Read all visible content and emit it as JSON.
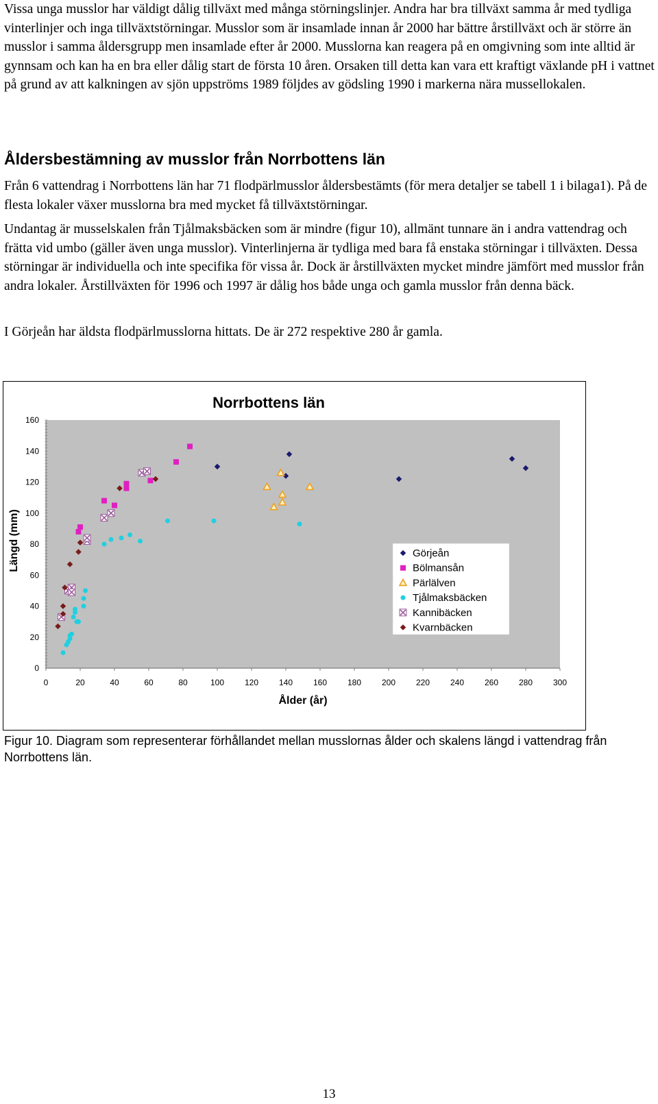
{
  "paragraphs": {
    "p1": "Vissa unga musslor har väldigt dålig tillväxt med många störningslinjer. Andra har bra tillväxt samma år med tydliga vinterlinjer och inga tillväxtstörningar. Musslor som är insamlade innan år 2000 har bättre årstillväxt och är större än musslor i samma åldersgrupp men insamlade efter år 2000. Musslorna kan reagera på en omgivning som inte alltid är gynnsam och kan ha en bra eller dålig start de första 10 åren. Orsaken till detta kan vara ett kraftigt växlande pH i vattnet på grund av att kalkningen av sjön uppströms 1989 följdes av gödsling 1990 i markerna nära mussellokalen.",
    "heading": "Åldersbestämning av musslor från Norrbottens län",
    "p2": "Från 6 vattendrag i Norrbottens län har 71 flodpärlmusslor åldersbestämts (för mera detaljer se tabell 1 i bilaga1). På de flesta lokaler växer musslorna bra med mycket få tillväxtstörningar.",
    "p3": "Undantag är musselskalen från Tjålmaksbäcken som är mindre (figur 10), allmänt tunnare än i andra vattendrag och frätta vid umbo (gäller även unga musslor). Vinterlinjerna är tydliga med bara få enstaka störningar i tillväxten. Dessa störningar är individuella och inte specifika för vissa år. Dock är årstillväxten mycket mindre jämfört med musslor från andra lokaler. Årstillväxten för 1996 och 1997 är dålig hos både unga och gamla musslor från denna bäck.",
    "p4": "I Görjeån har äldsta flodpärlmusslorna hittats. De är 272 respektive 280 år gamla."
  },
  "caption": "Figur 10. Diagram som representerar förhållandet mellan musslornas ålder och skalens längd i vattendrag från Norrbottens län.",
  "page_number": "13",
  "chart_data": {
    "type": "scatter",
    "title": "Norrbottens län",
    "xlabel": "Ålder (år)",
    "ylabel": "Längd (mm)",
    "xlim": [
      0,
      300
    ],
    "ylim": [
      0,
      160
    ],
    "x_ticks": [
      0,
      20,
      40,
      60,
      80,
      100,
      120,
      140,
      160,
      180,
      200,
      220,
      240,
      260,
      280,
      300
    ],
    "y_ticks": [
      0,
      20,
      40,
      60,
      80,
      100,
      120,
      140,
      160
    ],
    "plot_background": "#c0c0c0",
    "grid": false,
    "legend_position": "right",
    "series": [
      {
        "name": "Görjeån",
        "marker": "diamond",
        "color": "#1a1a6e",
        "points": [
          [
            100,
            130
          ],
          [
            142,
            138
          ],
          [
            140,
            124
          ],
          [
            206,
            122
          ],
          [
            272,
            135
          ],
          [
            280,
            129
          ]
        ]
      },
      {
        "name": "Bölmansån",
        "marker": "square",
        "color": "#e020c0",
        "points": [
          [
            19,
            88
          ],
          [
            20,
            91
          ],
          [
            34,
            108
          ],
          [
            40,
            105
          ],
          [
            47,
            119
          ],
          [
            47,
            116
          ],
          [
            61,
            121
          ],
          [
            76,
            133
          ],
          [
            84,
            143
          ]
        ]
      },
      {
        "name": "Pärlälven",
        "marker": "triangle",
        "color": "#f0a020",
        "points": [
          [
            129,
            117
          ],
          [
            133,
            104
          ],
          [
            137,
            126
          ],
          [
            138,
            112
          ],
          [
            138,
            107
          ],
          [
            154,
            117
          ]
        ]
      },
      {
        "name": "Tjålmaksbäcken",
        "marker": "circle",
        "color": "#20d0e0",
        "points": [
          [
            10,
            10
          ],
          [
            12,
            15
          ],
          [
            13,
            17
          ],
          [
            14,
            19
          ],
          [
            14,
            21
          ],
          [
            15,
            22
          ],
          [
            16,
            33
          ],
          [
            17,
            36
          ],
          [
            17,
            38
          ],
          [
            18,
            30
          ],
          [
            19,
            30
          ],
          [
            22,
            40
          ],
          [
            22,
            45
          ],
          [
            23,
            50
          ],
          [
            34,
            80
          ],
          [
            38,
            83
          ],
          [
            44,
            84
          ],
          [
            49,
            86
          ],
          [
            55,
            82
          ],
          [
            71,
            95
          ],
          [
            98,
            95
          ],
          [
            148,
            93
          ]
        ]
      },
      {
        "name": "Kannibäcken",
        "marker": "cross",
        "color": "#9a5a9a",
        "points": [
          [
            9,
            33
          ],
          [
            13,
            50
          ],
          [
            15,
            52
          ],
          [
            15,
            49
          ],
          [
            24,
            82
          ],
          [
            24,
            84
          ],
          [
            34,
            97
          ],
          [
            38,
            100
          ],
          [
            56,
            126
          ],
          [
            59,
            127
          ]
        ]
      },
      {
        "name": "Kvarnbäcken",
        "marker": "diamond",
        "color": "#7a1a1a",
        "points": [
          [
            7,
            27
          ],
          [
            10,
            35
          ],
          [
            10,
            40
          ],
          [
            11,
            52
          ],
          [
            14,
            67
          ],
          [
            19,
            75
          ],
          [
            20,
            81
          ],
          [
            43,
            116
          ],
          [
            64,
            122
          ]
        ]
      }
    ]
  }
}
